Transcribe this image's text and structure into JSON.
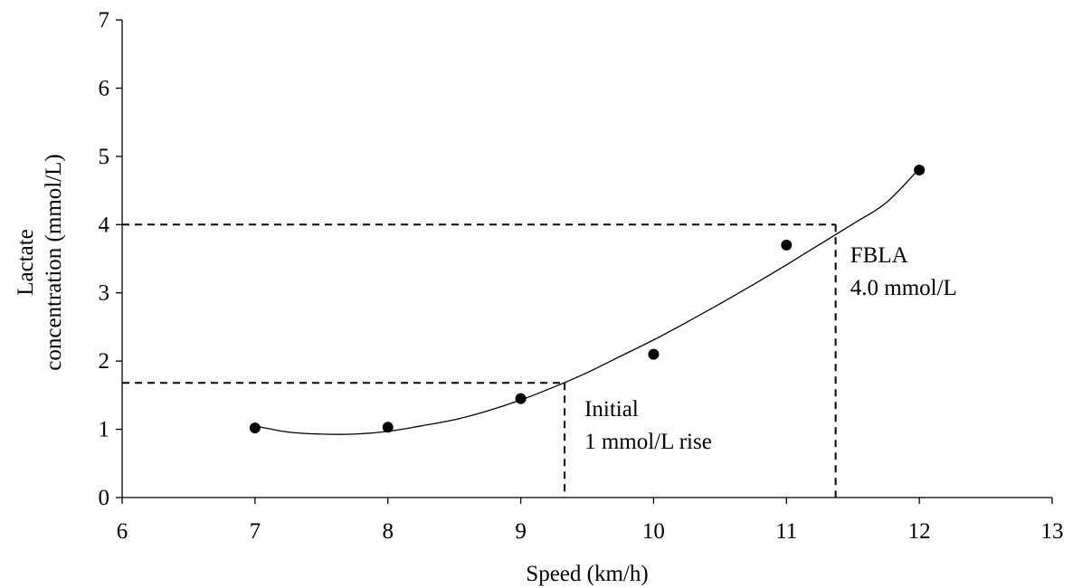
{
  "chart_data": {
    "type": "scatter",
    "title": "",
    "xlabel": "Speed (km/h)",
    "ylabel": [
      "Lactate",
      "concentration (mmol/L)"
    ],
    "xlim": [
      6,
      13
    ],
    "ylim": [
      0,
      7
    ],
    "x_ticks": [
      6,
      7,
      8,
      9,
      10,
      11,
      12,
      13
    ],
    "y_ticks": [
      0,
      1,
      2,
      3,
      4,
      5,
      6,
      7
    ],
    "grid": false,
    "legend": "none",
    "series": [
      {
        "x": [
          7,
          8,
          9,
          10,
          11,
          12
        ],
        "y": [
          1.02,
          1.03,
          1.45,
          2.1,
          3.7,
          4.8
        ]
      }
    ],
    "trendline": {
      "type": "polynomial",
      "points": [
        [
          7.0,
          1.05
        ],
        [
          7.25,
          0.96
        ],
        [
          7.5,
          0.93
        ],
        [
          7.75,
          0.93
        ],
        [
          8.0,
          0.97
        ],
        [
          8.25,
          1.05
        ],
        [
          8.5,
          1.14
        ],
        [
          8.75,
          1.27
        ],
        [
          9.0,
          1.43
        ],
        [
          9.25,
          1.62
        ],
        [
          9.5,
          1.83
        ],
        [
          9.75,
          2.07
        ],
        [
          10.0,
          2.31
        ],
        [
          10.25,
          2.57
        ],
        [
          10.5,
          2.84
        ],
        [
          10.75,
          3.12
        ],
        [
          11.0,
          3.41
        ],
        [
          11.25,
          3.71
        ],
        [
          11.5,
          4.01
        ],
        [
          11.75,
          4.32
        ],
        [
          12.0,
          4.82
        ]
      ]
    },
    "reference_lines": [
      {
        "name": "initial-rise",
        "y": 1.68,
        "x": 9.33
      },
      {
        "name": "fbla",
        "y": 4.0,
        "x": 11.37
      }
    ],
    "annotations": [
      {
        "name": "initial-rise",
        "lines": [
          "Initial",
          "1 mmol/L rise"
        ],
        "x": 9.48,
        "y": 1.3
      },
      {
        "name": "fbla",
        "lines": [
          "FBLA",
          "4.0 mmol/L"
        ],
        "x": 11.48,
        "y": 3.55
      }
    ]
  }
}
